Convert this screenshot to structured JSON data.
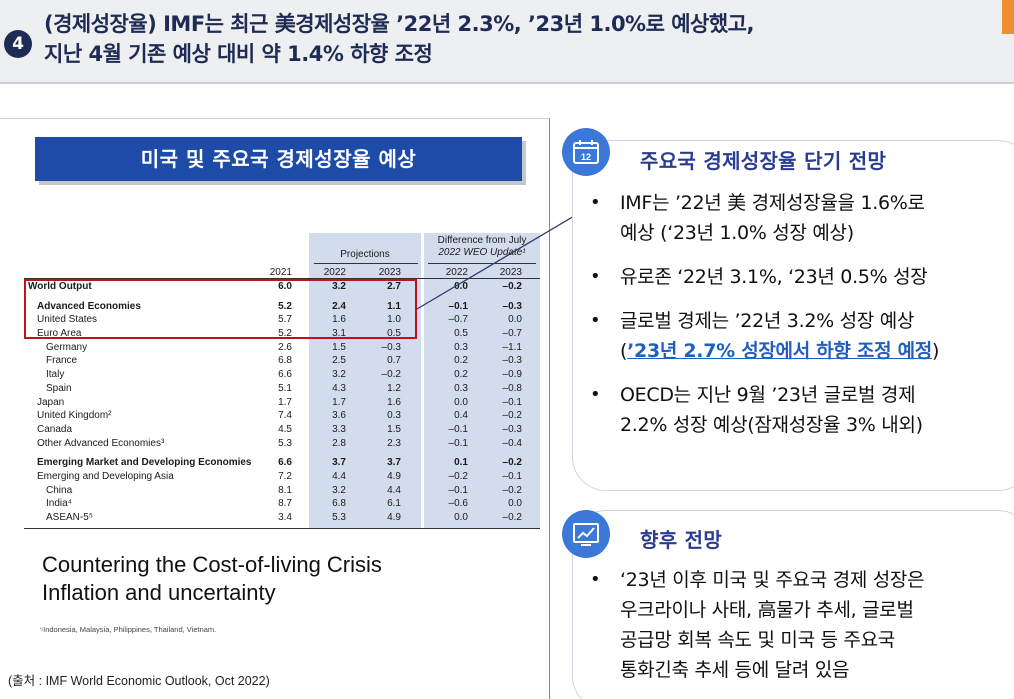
{
  "header": {
    "number": "4",
    "title_line1": "(경제성장율) IMF는 최근 美경제성장율  ’22년 2.3%, ’23년 1.0%로 예상했고,",
    "title_line2": "지난 4월 기존 예상 대비 약 1.4% 하향 조정"
  },
  "left": {
    "banner": "미국 및 주요국 경제성장율 예상",
    "table": {
      "group_projections": "Projections",
      "group_difference_l1": "Difference from July",
      "group_difference_l2": "2022 WEO Update¹",
      "col_2021": "2021",
      "col_p2022": "2022",
      "col_p2023": "2023",
      "col_d2022": "2022",
      "col_d2023": "2023",
      "rows": [
        {
          "label": "World Output",
          "v": [
            "6.0",
            "3.2",
            "2.7",
            "0.0",
            "–0.2"
          ],
          "style": "bold"
        },
        {
          "label": "Advanced Economies",
          "v": [
            "5.2",
            "2.4",
            "1.1",
            "–0.1",
            "–0.3"
          ],
          "style": "bold-ind"
        },
        {
          "label": "United States",
          "v": [
            "5.7",
            "1.6",
            "1.0",
            "–0.7",
            "0.0"
          ],
          "style": "ind1"
        },
        {
          "label": "Euro Area",
          "v": [
            "5.2",
            "3.1",
            "0.5",
            "0.5",
            "–0.7"
          ],
          "style": "ind1"
        },
        {
          "label": "Germany",
          "v": [
            "2.6",
            "1.5",
            "–0.3",
            "0.3",
            "–1.1"
          ],
          "style": "ind2"
        },
        {
          "label": "France",
          "v": [
            "6.8",
            "2.5",
            "0.7",
            "0.2",
            "–0.3"
          ],
          "style": "ind2"
        },
        {
          "label": "Italy",
          "v": [
            "6.6",
            "3.2",
            "–0.2",
            "0.2",
            "–0.9"
          ],
          "style": "ind2"
        },
        {
          "label": "Spain",
          "v": [
            "5.1",
            "4.3",
            "1.2",
            "0.3",
            "–0.8"
          ],
          "style": "ind2"
        },
        {
          "label": "Japan",
          "v": [
            "1.7",
            "1.7",
            "1.6",
            "0.0",
            "–0.1"
          ],
          "style": "ind1"
        },
        {
          "label": "United Kingdom²",
          "v": [
            "7.4",
            "3.6",
            "0.3",
            "0.4",
            "–0.2"
          ],
          "style": "ind1"
        },
        {
          "label": "Canada",
          "v": [
            "4.5",
            "3.3",
            "1.5",
            "–0.1",
            "–0.3"
          ],
          "style": "ind1"
        },
        {
          "label": "Other Advanced Economies³",
          "v": [
            "5.3",
            "2.8",
            "2.3",
            "–0.1",
            "–0.4"
          ],
          "style": "ind1"
        },
        {
          "label": "Emerging Market and Developing Economies",
          "v": [
            "6.6",
            "3.7",
            "3.7",
            "0.1",
            "–0.2"
          ],
          "style": "bold-ind"
        },
        {
          "label": "Emerging and Developing Asia",
          "v": [
            "7.2",
            "4.4",
            "4.9",
            "–0.2",
            "–0.1"
          ],
          "style": "ind1"
        },
        {
          "label": "China",
          "v": [
            "8.1",
            "3.2",
            "4.4",
            "–0.1",
            "–0.2"
          ],
          "style": "ind2"
        },
        {
          "label": "India⁴",
          "v": [
            "8.7",
            "6.8",
            "6.1",
            "–0.6",
            "0.0"
          ],
          "style": "ind2"
        },
        {
          "label": "ASEAN-5⁵",
          "v": [
            "3.4",
            "5.3",
            "4.9",
            "0.0",
            "–0.2"
          ],
          "style": "ind2"
        }
      ]
    },
    "overlay_line1": "Countering the Cost-of-living Crisis",
    "overlay_line2": "Inflation and uncertainty",
    "footnote": "⁵Indonesia, Malaysia, Philippines, Thailand, Vietnam.",
    "source": "(출처 : IMF World Economic Outlook, Oct 2022)"
  },
  "card_short": {
    "icon": "calendar-icon",
    "icon_text": "12",
    "title": "주요국 경제성장율 단기 전망",
    "b1_l1": "IMF는 ’22년 美 경제성장율을 1.6%로",
    "b1_l2": "예상 (‘23년 1.0% 성장 예상)",
    "b2_l1": "유로존 ‘22년 3.1%, ‘23년 0.5% 성장",
    "b3_l1": "글로벌 경제는 ’22년 3.2% 성장 예상",
    "b3_open": "(",
    "b3_link": "’23년 2.7% 성장에서 하향 조정 예정",
    "b3_close": ")",
    "b4_l1": "OECD는 지난 9월 ’23년 글로벌 경제",
    "b4_l2": "2.2% 성장 예상(잠재성장율 3% 내외)"
  },
  "card_outlook": {
    "icon": "trend-chart-icon",
    "title": "향후 전망",
    "b1_l1": "‘23년 이후 미국 및 주요국 경제 성장은",
    "b1_l2": "우크라이나 사태, 高물가 추세, 글로벌",
    "b1_l3": "공급망 회복 속도 및 미국 등 주요국",
    "b1_l4": "통화긴축 추세 등에 달려 있음"
  },
  "colors": {
    "banner": "#1e4ba8",
    "header_text": "#1d2b55",
    "accent_orange": "#f08c32",
    "highlight_red": "#c0121a",
    "card_title": "#2a3c8f",
    "icon_blue": "#3b78d8",
    "table_shade": "#d3dcec"
  }
}
